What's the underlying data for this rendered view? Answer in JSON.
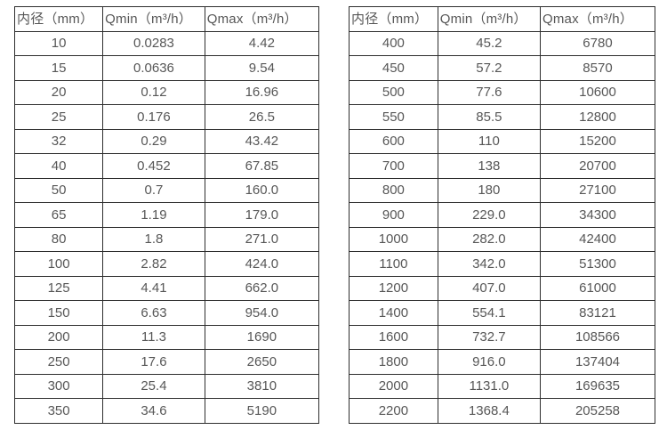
{
  "page": {
    "background_color": "#ffffff",
    "border_color": "#2e2e2e",
    "text_color": "#575757"
  },
  "tables": [
    {
      "id": "flow-table-small-diameters",
      "headers": [
        "内径（mm）",
        "Qmin（m³/h）",
        "Qmax（m³/h）"
      ],
      "rows": [
        [
          "10",
          "0.0283",
          "4.42"
        ],
        [
          "15",
          "0.0636",
          "9.54"
        ],
        [
          "20",
          "0.12",
          "16.96"
        ],
        [
          "25",
          "0.176",
          "26.5"
        ],
        [
          "32",
          "0.29",
          "43.42"
        ],
        [
          "40",
          "0.452",
          "67.85"
        ],
        [
          "50",
          "0.7",
          "160.0"
        ],
        [
          "65",
          "1.19",
          "179.0"
        ],
        [
          "80",
          "1.8",
          "271.0"
        ],
        [
          "100",
          "2.82",
          "424.0"
        ],
        [
          "125",
          "4.41",
          "662.0"
        ],
        [
          "150",
          "6.63",
          "954.0"
        ],
        [
          "200",
          "11.3",
          "1690"
        ],
        [
          "250",
          "17.6",
          "2650"
        ],
        [
          "300",
          "25.4",
          "3810"
        ],
        [
          "350",
          "34.6",
          "5190"
        ]
      ]
    },
    {
      "id": "flow-table-large-diameters",
      "headers": [
        "内径（mm）",
        "Qmin（m³/h）",
        "Qmax（m³/h）"
      ],
      "rows": [
        [
          "400",
          "45.2",
          "6780"
        ],
        [
          "450",
          "57.2",
          "8570"
        ],
        [
          "500",
          "77.6",
          "10600"
        ],
        [
          "550",
          "85.5",
          "12800"
        ],
        [
          "600",
          "110",
          "15200"
        ],
        [
          "700",
          "138",
          "20700"
        ],
        [
          "800",
          "180",
          "27100"
        ],
        [
          "900",
          "229.0",
          "34300"
        ],
        [
          "1000",
          "282.0",
          "42400"
        ],
        [
          "1100",
          "342.0",
          "51300"
        ],
        [
          "1200",
          "407.0",
          "61000"
        ],
        [
          "1400",
          "554.1",
          "83121"
        ],
        [
          "1600",
          "732.7",
          "108566"
        ],
        [
          "1800",
          "916.0",
          "137404"
        ],
        [
          "2000",
          "1131.0",
          "169635"
        ],
        [
          "2200",
          "1368.4",
          "205258"
        ]
      ]
    }
  ]
}
